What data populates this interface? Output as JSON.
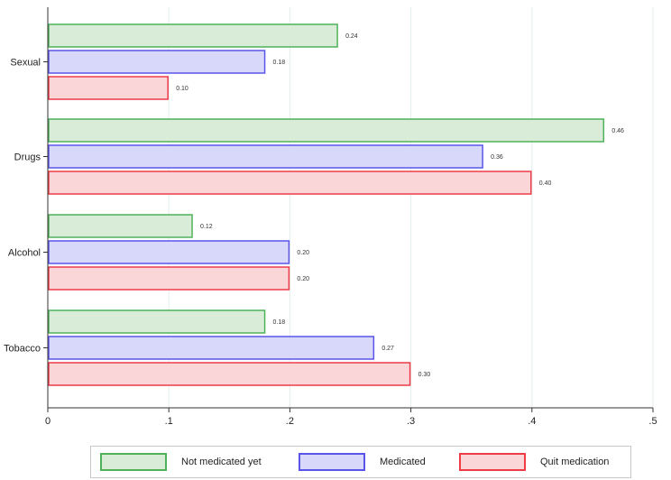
{
  "chart_data": {
    "type": "bar",
    "orientation": "horizontal",
    "categories": [
      "Sexual",
      "Drugs",
      "Alcohol",
      "Tobacco"
    ],
    "series": [
      {
        "name": "Not medicated yet",
        "values": [
          0.24,
          0.46,
          0.12,
          0.18
        ],
        "labels": [
          "0.24",
          "0.46",
          "0.12",
          "0.18"
        ],
        "fill": "#d9ecd7",
        "stroke": "#4fb25a"
      },
      {
        "name": "Medicated",
        "values": [
          0.18,
          0.36,
          0.2,
          0.27
        ],
        "labels": [
          "0.18",
          "0.36",
          "0.20",
          "0.27"
        ],
        "fill": "#d8d8fb",
        "stroke": "#5a55e8"
      },
      {
        "name": "Quit medication",
        "values": [
          0.1,
          0.4,
          0.2,
          0.3
        ],
        "labels": [
          "0.10",
          "0.40",
          "0.20",
          "0.30"
        ],
        "fill": "#fbd6d8",
        "stroke": "#ee3b48"
      }
    ],
    "xlim": [
      0,
      0.5
    ],
    "xticks": [
      0,
      0.1,
      0.2,
      0.3,
      0.4,
      0.5
    ],
    "xtick_labels": [
      "0",
      ".1",
      ".2",
      ".3",
      ".4",
      ".5"
    ],
    "grid": true,
    "legend_position": "bottom",
    "title": "",
    "xlabel": "",
    "ylabel": ""
  },
  "legend": {
    "items": [
      {
        "label": "Not medicated yet"
      },
      {
        "label": "Medicated"
      },
      {
        "label": "Quit medication"
      }
    ]
  }
}
